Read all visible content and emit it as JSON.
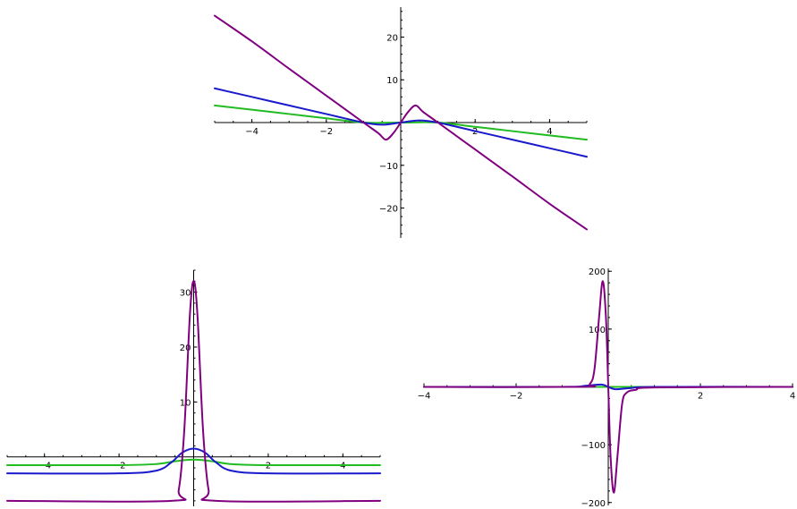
{
  "chart_data": [
    {
      "type": "line",
      "title": "",
      "xlabel": "",
      "ylabel": "",
      "xlim": [
        -5,
        5
      ],
      "ylim": [
        -27,
        27
      ],
      "x_ticks": [
        -4,
        -2,
        2,
        4
      ],
      "y_ticks": [
        -20,
        -10,
        10,
        20
      ],
      "grid": false,
      "series": [
        {
          "color": "#22bb22",
          "points": [
            [
              -5,
              4
            ],
            [
              -4,
              3
            ],
            [
              -3,
              2
            ],
            [
              -2,
              1
            ],
            [
              -1,
              0
            ],
            [
              0,
              0
            ],
            [
              1,
              0
            ],
            [
              2,
              -1
            ],
            [
              3,
              -2
            ],
            [
              4,
              -3
            ],
            [
              5,
              -4
            ]
          ]
        },
        {
          "color": "#1a1acc",
          "points": [
            [
              -5,
              8
            ],
            [
              -4,
              6
            ],
            [
              -3,
              4
            ],
            [
              -2,
              2
            ],
            [
              -1,
              0
            ],
            [
              -0.5,
              -0.5
            ],
            [
              0,
              0
            ],
            [
              0.5,
              0.5
            ],
            [
              1,
              0
            ],
            [
              2,
              -2
            ],
            [
              3,
              -4
            ],
            [
              4,
              -6
            ],
            [
              5,
              -8
            ]
          ]
        },
        {
          "color": "#800080",
          "points": [
            [
              -5,
              25
            ],
            [
              -4,
              19
            ],
            [
              -3,
              12.6
            ],
            [
              -2,
              6.3
            ],
            [
              -1,
              0
            ],
            [
              -0.6,
              -2.5
            ],
            [
              -0.4,
              -4
            ],
            [
              -0.2,
              -2.5
            ],
            [
              0,
              0
            ],
            [
              0.2,
              2.5
            ],
            [
              0.4,
              4
            ],
            [
              0.6,
              2.5
            ],
            [
              1,
              0
            ],
            [
              2,
              -6.3
            ],
            [
              3,
              -12.6
            ],
            [
              4,
              -19
            ],
            [
              5,
              -25
            ]
          ]
        }
      ]
    },
    {
      "type": "line",
      "title": "",
      "xlabel": "",
      "ylabel": "",
      "xlim": [
        -5,
        5
      ],
      "ylim": [
        -9,
        34
      ],
      "x_ticks": [
        -4,
        -2,
        2,
        4
      ],
      "y_ticks": [
        10,
        20,
        30
      ],
      "grid": false,
      "series": [
        {
          "color": "#22bb22",
          "points": [
            [
              -5,
              -1.5
            ],
            [
              -2,
              -1.5
            ],
            [
              -1,
              -1.3
            ],
            [
              -0.5,
              -0.8
            ],
            [
              0,
              -0.5
            ],
            [
              0.5,
              -0.8
            ],
            [
              1,
              -1.3
            ],
            [
              2,
              -1.5
            ],
            [
              5,
              -1.5
            ]
          ]
        },
        {
          "color": "#1a1acc",
          "points": [
            [
              -5,
              -3
            ],
            [
              -2,
              -3
            ],
            [
              -1,
              -2.5
            ],
            [
              -0.6,
              -1
            ],
            [
              -0.3,
              0.8
            ],
            [
              0,
              1.5
            ],
            [
              0.3,
              0.8
            ],
            [
              0.6,
              -1
            ],
            [
              1,
              -2.5
            ],
            [
              2,
              -3
            ],
            [
              5,
              -3
            ]
          ]
        },
        {
          "color": "#800080",
          "points": [
            [
              -5,
              -8
            ],
            [
              -0.6,
              -8
            ],
            [
              -0.4,
              -6
            ],
            [
              -0.25,
              5
            ],
            [
              -0.1,
              26
            ],
            [
              0,
              32
            ],
            [
              0.1,
              26
            ],
            [
              0.25,
              5
            ],
            [
              0.4,
              -6
            ],
            [
              0.6,
              -8
            ],
            [
              5,
              -8
            ]
          ]
        }
      ]
    },
    {
      "type": "line",
      "title": "",
      "xlabel": "",
      "ylabel": "",
      "xlim": [
        -4,
        4
      ],
      "ylim": [
        -205,
        205
      ],
      "x_ticks": [
        -4,
        -2,
        2,
        4
      ],
      "y_ticks": [
        -200,
        -100,
        100,
        200
      ],
      "grid": false,
      "series": [
        {
          "color": "#22bb22",
          "points": [
            [
              -4,
              0
            ],
            [
              4,
              0
            ]
          ]
        },
        {
          "color": "#1a1acc",
          "points": [
            [
              -4,
              0
            ],
            [
              -1,
              0
            ],
            [
              -0.5,
              2
            ],
            [
              -0.15,
              4
            ],
            [
              0,
              0
            ],
            [
              0.15,
              -4
            ],
            [
              0.5,
              -2
            ],
            [
              1,
              0
            ],
            [
              4,
              0
            ]
          ]
        },
        {
          "color": "#800080",
          "points": [
            [
              -4,
              0
            ],
            [
              -0.6,
              0
            ],
            [
              -0.4,
              5
            ],
            [
              -0.3,
              30
            ],
            [
              -0.2,
              120
            ],
            [
              -0.12,
              183
            ],
            [
              -0.05,
              120
            ],
            [
              0,
              0
            ],
            [
              0.05,
              -120
            ],
            [
              0.12,
              -183
            ],
            [
              0.2,
              -120
            ],
            [
              0.3,
              -30
            ],
            [
              0.4,
              -10
            ],
            [
              0.6,
              -5
            ],
            [
              1,
              -1
            ],
            [
              4,
              0
            ]
          ]
        }
      ]
    }
  ]
}
